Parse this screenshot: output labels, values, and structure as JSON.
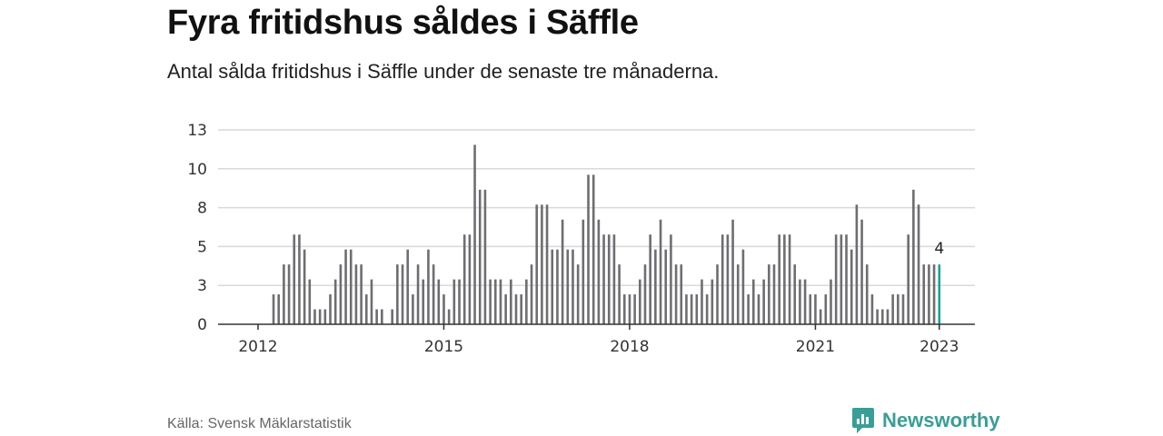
{
  "title": "Fyra fritidshus såldes i Säffle",
  "subtitle": "Antal sålda fritidshus i Säffle under de senaste tre månaderna.",
  "source": "Källa: Svensk Mäklarstatistik",
  "brand": {
    "name": "Newsworthy",
    "icon": "newsworthy-logo-icon",
    "color": "#3a9e96"
  },
  "colors": {
    "bar": "#6e6e72",
    "highlight": "#19a19a",
    "grid": "#d9d9d9",
    "axis": "#333333"
  },
  "chart_data": {
    "type": "bar",
    "ylim": [
      0,
      13
    ],
    "yticks": [
      "0",
      "3",
      "5",
      "8",
      "10",
      "13"
    ],
    "xticks": [
      "2012",
      "2015",
      "2018",
      "2021",
      "2023"
    ],
    "grid": true,
    "last_label": "4",
    "series": [
      {
        "x_start": "2012-01",
        "frequency": "monthly",
        "values": [
          0,
          0,
          0,
          2,
          2,
          4,
          4,
          6,
          6,
          5,
          3,
          1,
          1,
          1,
          2,
          3,
          4,
          5,
          5,
          4,
          4,
          2,
          3,
          1,
          1,
          0,
          1,
          4,
          4,
          5,
          2,
          4,
          3,
          5,
          4,
          3,
          2,
          1,
          3,
          3,
          6,
          6,
          12,
          9,
          9,
          3,
          3,
          3,
          2,
          3,
          2,
          2,
          3,
          4,
          8,
          8,
          8,
          5,
          5,
          7,
          5,
          5,
          4,
          7,
          10,
          10,
          7,
          6,
          6,
          6,
          4,
          2,
          2,
          2,
          3,
          4,
          6,
          5,
          7,
          5,
          6,
          4,
          4,
          2,
          2,
          2,
          3,
          2,
          3,
          4,
          6,
          6,
          7,
          4,
          5,
          2,
          3,
          2,
          3,
          4,
          4,
          6,
          6,
          6,
          4,
          3,
          3,
          2,
          2,
          1,
          2,
          3,
          6,
          6,
          6,
          5,
          8,
          7,
          4,
          2,
          1,
          1,
          1,
          2,
          2,
          2,
          6,
          9,
          8,
          4,
          4,
          4,
          4
        ]
      }
    ]
  }
}
